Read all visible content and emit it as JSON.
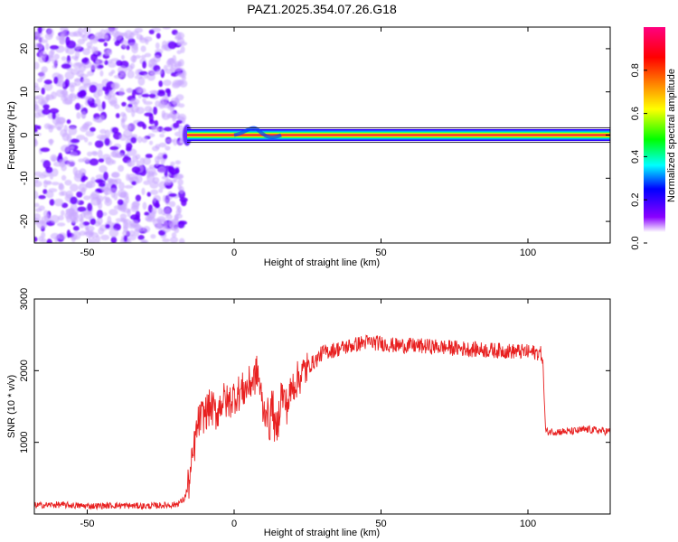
{
  "title": "PAZ1.2025.354.07.26.G18",
  "chart_data": [
    {
      "type": "heatmap",
      "xlabel": "Height of straight line (km)",
      "ylabel": "Frequency (Hz)",
      "xlim": [
        -68,
        128
      ],
      "ylim": [
        -25,
        25
      ],
      "xticks": [
        -50,
        0,
        50,
        100
      ],
      "yticks": [
        -20,
        -10,
        0,
        10,
        20
      ],
      "grid": false,
      "noise_region_x": [
        -68,
        -17
      ],
      "signal_line_frequency": 0,
      "signal_start_x": -16,
      "colorbar": {
        "label": "Normalized spectral amplitude",
        "range": [
          0,
          1
        ],
        "ticks": [
          0.0,
          0.2,
          0.4,
          0.6,
          0.8
        ],
        "tick_labels": [
          "0.0",
          "0.2",
          "0.4",
          "0.6",
          "0.8"
        ],
        "colormap": [
          "#ffffff",
          "#8a00ff",
          "#0000ff",
          "#00ffff",
          "#00ff00",
          "#ffff00",
          "#ff8000",
          "#ff0000",
          "#ff0080"
        ]
      }
    },
    {
      "type": "line",
      "xlabel": "Height of straight line (km)",
      "ylabel": "SNR (10 * v/v)",
      "xlim": [
        -68,
        128
      ],
      "ylim": [
        0,
        3000
      ],
      "xticks": [
        -50,
        0,
        50,
        100
      ],
      "yticks": [
        1000,
        2000,
        3000
      ],
      "grid": false,
      "color": "#e82020",
      "series": [
        {
          "x": [
            -68,
            -60,
            -50,
            -40,
            -30,
            -20,
            -17,
            -15,
            -14,
            -13,
            -12,
            -10,
            -8,
            -6,
            -4,
            -2,
            0,
            2,
            4,
            5,
            6,
            7,
            8,
            9,
            10,
            11,
            12,
            13,
            14,
            15,
            16,
            18,
            20,
            22,
            25,
            28,
            30,
            35,
            40,
            45,
            50,
            55,
            60,
            70,
            80,
            90,
            95,
            100,
            104,
            105,
            106,
            110,
            115,
            120,
            128
          ],
          "y": [
            120,
            130,
            110,
            120,
            110,
            130,
            200,
            500,
            800,
            1100,
            1300,
            1400,
            1500,
            1400,
            1600,
            1550,
            1650,
            1700,
            1750,
            1800,
            1850,
            1900,
            2000,
            1700,
            1400,
            1500,
            1200,
            1600,
            1100,
            1300,
            1700,
            1500,
            1800,
            1900,
            2050,
            2150,
            2250,
            2300,
            2350,
            2400,
            2380,
            2350,
            2350,
            2330,
            2300,
            2280,
            2270,
            2260,
            2250,
            2200,
            1150,
            1150,
            1150,
            1180,
            1150
          ]
        }
      ]
    }
  ]
}
